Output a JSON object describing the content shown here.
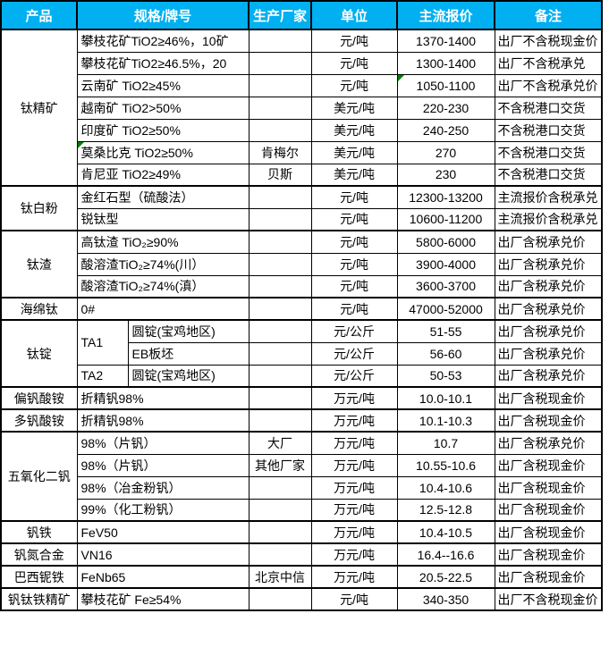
{
  "colors": {
    "header_bg": "#00B0F0",
    "header_text": "#FFFFFF",
    "border": "#000000",
    "flag_green": "#008000"
  },
  "table": {
    "columns": [
      "产品",
      "规格/牌号",
      "生产厂家",
      "单位",
      "主流报价",
      "备注"
    ],
    "groups": [
      {
        "product": "钛精矿",
        "rows": [
          {
            "spec": "攀枝花矿TiO2≥46%，10矿",
            "factory": "",
            "unit": "元/吨",
            "price": "1370-1400",
            "note": "出厂不含税现金价"
          },
          {
            "spec": "攀枝花矿TiO2≥46.5%，20",
            "factory": "",
            "unit": "元/吨",
            "price": "1300-1400",
            "note": "出厂不含税承兑"
          },
          {
            "spec": "云南矿 TiO2≥45%",
            "factory": "",
            "unit": "元/吨",
            "price": "1050-1100",
            "note": "出厂不含税承兑价",
            "flag": "price"
          },
          {
            "spec": "越南矿 TiO2>50%",
            "factory": "",
            "unit": "美元/吨",
            "price": "220-230",
            "note": "不含税港口交货"
          },
          {
            "spec": "印度矿 TiO2≥50%",
            "factory": "",
            "unit": "美元/吨",
            "price": "240-250",
            "note": "不含税港口交货"
          },
          {
            "spec": "莫桑比克 TiO2≥50%",
            "factory": "肯梅尔",
            "unit": "美元/吨",
            "price": "270",
            "note": "不含税港口交货",
            "flag": "spec"
          },
          {
            "spec": "肯尼亚 TiO2≥49%",
            "factory": "贝斯",
            "unit": "美元/吨",
            "price": "230",
            "note": "不含税港口交货"
          }
        ]
      },
      {
        "product": "钛白粉",
        "rows": [
          {
            "spec": "金红石型（硫酸法）",
            "factory": "",
            "unit": "元/吨",
            "price": "12300-13200",
            "note": "主流报价含税承兑"
          },
          {
            "spec": "锐钛型",
            "factory": "",
            "unit": "元/吨",
            "price": "10600-11200",
            "note": "主流报价含税承兑"
          }
        ]
      },
      {
        "product": "钛渣",
        "rows": [
          {
            "spec": "高钛渣 TiO₂≥90%",
            "factory": "",
            "unit": "元/吨",
            "price": "5800-6000",
            "note": "出厂含税承兑价"
          },
          {
            "spec": "酸溶渣TiO₂≥74%(川）",
            "factory": "",
            "unit": "元/吨",
            "price": "3900-4000",
            "note": "出厂含税承兑价"
          },
          {
            "spec": "酸溶渣TiO₂≥74%(滇）",
            "factory": "",
            "unit": "元/吨",
            "price": "3600-3700",
            "note": "出厂含税承兑价"
          }
        ]
      },
      {
        "product": "海绵钛",
        "rows": [
          {
            "spec": "0#",
            "factory": "",
            "unit": "元/吨",
            "price": "47000-52000",
            "note": "出厂含税承兑价"
          }
        ]
      },
      {
        "product": "钛锭",
        "rows": [
          {
            "spec": "TA1",
            "spec_rowspan": 2,
            "spec2": "圆锭(宝鸡地区)",
            "factory": "",
            "unit": "元/公斤",
            "price": "51-55",
            "note": "出厂含税承兑价"
          },
          {
            "spec2": "EB板坯",
            "factory": "",
            "unit": "元/公斤",
            "price": "56-60",
            "note": "出厂含税承兑价"
          },
          {
            "spec": "TA2",
            "spec2": "圆锭(宝鸡地区)",
            "factory": "",
            "unit": "元/公斤",
            "price": "50-53",
            "note": "出厂含税承兑价"
          }
        ]
      },
      {
        "product": "偏钒酸铵",
        "rows": [
          {
            "spec": "折精钒98%",
            "factory": "",
            "unit": "万元/吨",
            "price": "10.0-10.1",
            "note": "出厂含税现金价"
          }
        ]
      },
      {
        "product": "多钒酸铵",
        "rows": [
          {
            "spec": "折精钒98%",
            "factory": "",
            "unit": "万元/吨",
            "price": "10.1-10.3",
            "note": "出厂含税现金价"
          }
        ]
      },
      {
        "product": "五氧化二钒",
        "rows": [
          {
            "spec": "98%（片钒）",
            "factory": "大厂",
            "unit": "万元/吨",
            "price": "10.7",
            "note": "出厂含税承兑价"
          },
          {
            "spec": "98%（片钒）",
            "factory": "其他厂家",
            "unit": "万元/吨",
            "price": "10.55-10.6",
            "note": "出厂含税现金价"
          },
          {
            "spec": "98%（冶金粉钒）",
            "factory": "",
            "unit": "万元/吨",
            "price": "10.4-10.6",
            "note": "出厂含税现金价"
          },
          {
            "spec": "99%（化工粉钒）",
            "factory": "",
            "unit": "万元/吨",
            "price": "12.5-12.8",
            "note": "出厂含税现金价"
          }
        ]
      },
      {
        "product": "钒铁",
        "rows": [
          {
            "spec": "FeV50",
            "factory": "",
            "unit": "万元/吨",
            "price": "10.4-10.5",
            "note": "出厂含税现金价"
          }
        ]
      },
      {
        "product": "钒氮合金",
        "rows": [
          {
            "spec": "VN16",
            "factory": "",
            "unit": "万元/吨",
            "price": "16.4--16.6",
            "note": "出厂含税现金价"
          }
        ]
      },
      {
        "product": "巴西铌铁",
        "rows": [
          {
            "spec": "FeNb65",
            "factory": "北京中信",
            "unit": "万元/吨",
            "price": "20.5-22.5",
            "note": "出厂含税现金价"
          }
        ]
      },
      {
        "product": "钒钛铁精矿",
        "rows": [
          {
            "spec": "攀枝花矿 Fe≥54%",
            "factory": "",
            "unit": "元/吨",
            "price": "340-350",
            "note": "出厂不含税现金价"
          }
        ]
      }
    ]
  }
}
